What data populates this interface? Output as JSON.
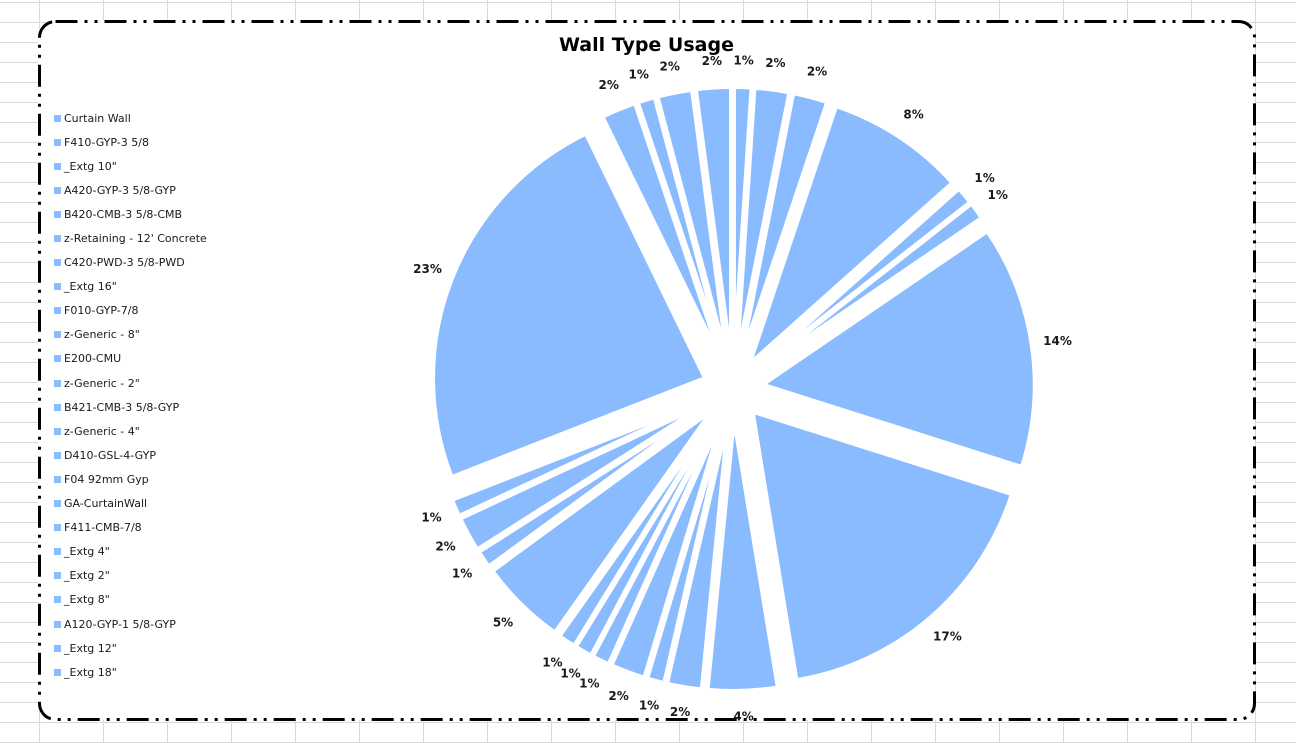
{
  "chart_data": {
    "type": "pie",
    "title": "Wall Type Usage",
    "exploded": true,
    "color": "#8abbff",
    "legend_position": "left",
    "grid": false,
    "slices": [
      {
        "label": "Curtain Wall",
        "value": 1,
        "display": "1%"
      },
      {
        "label": "F410-GYP-3 5/8",
        "value": 2,
        "display": "2%"
      },
      {
        "label": "_Extg 10\"",
        "value": 2,
        "display": "2%"
      },
      {
        "label": "A420-GYP-3 5/8-GYP",
        "value": 8,
        "display": "8%"
      },
      {
        "label": "B420-CMB-3 5/8-CMB",
        "value": 1,
        "display": "1%"
      },
      {
        "label": "z-Retaining - 12' Concrete",
        "value": 1,
        "display": "1%"
      },
      {
        "label": "C420-PWD-3 5/8-PWD",
        "value": 14,
        "display": "14%"
      },
      {
        "label": "_Extg 18\"",
        "value": 17,
        "display": "17%"
      },
      {
        "label": "_Extg 16\"",
        "value": 4,
        "display": "4%"
      },
      {
        "label": "F010-GYP-7/8",
        "value": 2,
        "display": "2%"
      },
      {
        "label": "z-Generic - 8\"",
        "value": 1,
        "display": "1%"
      },
      {
        "label": "E200-CMU",
        "value": 2,
        "display": "2%"
      },
      {
        "label": "z-Generic - 2\"",
        "value": 1,
        "display": "1%"
      },
      {
        "label": "B421-CMB-3 5/8-GYP",
        "value": 1,
        "display": "1%"
      },
      {
        "label": "z-Generic - 4\"",
        "value": 1,
        "display": "1%"
      },
      {
        "label": "D410-GSL-4-GYP",
        "value": 5,
        "display": "5%"
      },
      {
        "label": "F04 92mm Gyp",
        "value": 1,
        "display": "1%"
      },
      {
        "label": "GA-CurtainWall",
        "value": 2,
        "display": "2%"
      },
      {
        "label": "F411-CMB-7/8",
        "value": 1,
        "display": "1%"
      },
      {
        "label": "_Extg 4\"",
        "value": 23,
        "display": "23%"
      },
      {
        "label": "_Extg 2\"",
        "value": 2,
        "display": "2%"
      },
      {
        "label": "_Extg 8\"",
        "value": 1,
        "display": "1%"
      },
      {
        "label": "A120-GYP-1 5/8-GYP",
        "value": 2,
        "display": "2%"
      },
      {
        "label": "_Extg 12\"",
        "value": 2,
        "display": "2%"
      }
    ]
  }
}
